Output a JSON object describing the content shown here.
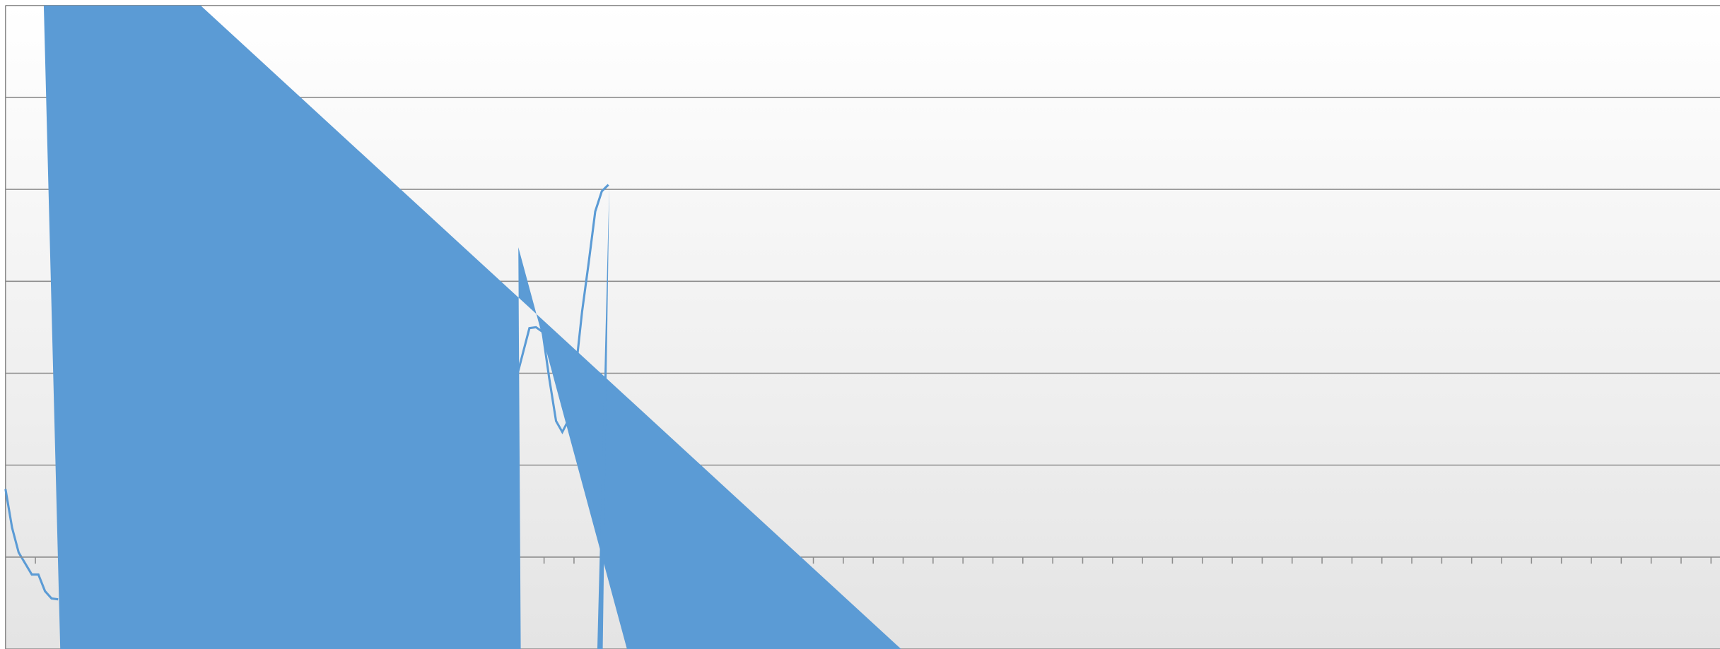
{
  "chart_data": {
    "type": "line",
    "xlim": [
      0,
      57.3
    ],
    "ylim": [
      -1,
      6
    ],
    "xticks": [
      1,
      2,
      3,
      4,
      5,
      6,
      7,
      8,
      9,
      10,
      11,
      12,
      13,
      14,
      15,
      16,
      17,
      18,
      19,
      20,
      21,
      22,
      23,
      24,
      25,
      26,
      27,
      28,
      29,
      30,
      31,
      32,
      33,
      34,
      35,
      36,
      37,
      38,
      39,
      40,
      41,
      42,
      43,
      44,
      45,
      46,
      47,
      48,
      49,
      50,
      51,
      52,
      53,
      54,
      55,
      56,
      57
    ],
    "yticks": [
      -1,
      0,
      1,
      2,
      3,
      4,
      5,
      6
    ],
    "grid": true,
    "series": [
      {
        "type": "area",
        "color": "#5b9bd5",
        "x": [
          1.28,
          6.52,
          29.93,
          20.77,
          17.14,
          17.22,
          1.83
        ],
        "values": [
          6,
          6,
          -1,
          -1,
          3.37,
          -1,
          -1
        ]
      },
      {
        "type": "area",
        "color": "#5b9bd5",
        "x": [
          19.78,
          20.18,
          19.96
        ],
        "values": [
          -1,
          4.04,
          -1
        ]
      },
      {
        "type": "line",
        "color": "#5b9bd5",
        "x": [
          0,
          0.22,
          0.44,
          0.88,
          1.1,
          1.32,
          1.54,
          1.76,
          null,
          17.03,
          17.51,
          17.73,
          17.95,
          18.17,
          18.4,
          18.61,
          18.83,
          19.05,
          19.27,
          19.49,
          19.71,
          19.93,
          20.15
        ],
        "values": [
          0.74,
          0.32,
          0.05,
          -0.19,
          -0.19,
          -0.37,
          -0.45,
          -0.46,
          null,
          1.89,
          2.49,
          2.5,
          2.45,
          1.95,
          1.48,
          1.36,
          1.5,
          2.01,
          2.67,
          3.2,
          3.76,
          3.98,
          4.05
        ]
      }
    ]
  }
}
